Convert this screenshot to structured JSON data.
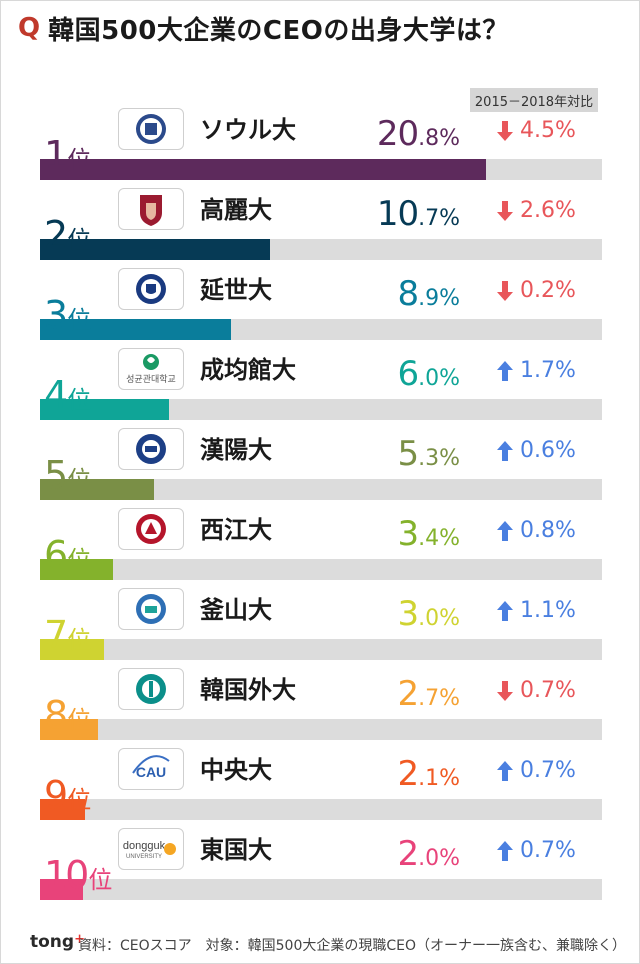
{
  "header": {
    "q_mark": "Q",
    "title": "韓国500大企業のCEOの出身大学は？",
    "comparison_label": "2015－2018年対比"
  },
  "chart_data": {
    "type": "bar",
    "title": "韓国500大企業のCEOの出身大学は？",
    "unit": "%",
    "xlim": [
      0,
      26.2
    ],
    "rank_suffix": "位",
    "items": [
      {
        "rank": "1",
        "name": "ソウル大",
        "value": 20.8,
        "int": "20",
        "dec": ".8%",
        "change_dir": "down",
        "change": "4.5%",
        "color": "#5d2a5c",
        "logo": "seoul-national-university-logo"
      },
      {
        "rank": "2",
        "name": "高麗大",
        "value": 10.7,
        "int": "10",
        "dec": ".7%",
        "change_dir": "down",
        "change": "2.6%",
        "color": "#063a55",
        "logo": "korea-university-logo"
      },
      {
        "rank": "3",
        "name": "延世大",
        "value": 8.9,
        "int": "8",
        "dec": ".9%",
        "change_dir": "down",
        "change": "0.2%",
        "color": "#0a7d9b",
        "logo": "yonsei-university-logo"
      },
      {
        "rank": "4",
        "name": "成均館大",
        "value": 6.0,
        "int": "6",
        "dec": ".0%",
        "change_dir": "up",
        "change": "1.7%",
        "color": "#0fa597",
        "logo": "sungkyunkwan-university-logo",
        "logo_text": "성균관대학교"
      },
      {
        "rank": "5",
        "name": "漢陽大",
        "value": 5.3,
        "int": "5",
        "dec": ".3%",
        "change_dir": "up",
        "change": "0.6%",
        "color": "#7a8f46",
        "logo": "hanyang-university-logo"
      },
      {
        "rank": "6",
        "name": "西江大",
        "value": 3.4,
        "int": "3",
        "dec": ".4%",
        "change_dir": "up",
        "change": "0.8%",
        "color": "#84b22c",
        "logo": "sogang-university-logo"
      },
      {
        "rank": "7",
        "name": "釜山大",
        "value": 3.0,
        "int": "3",
        "dec": ".0%",
        "change_dir": "up",
        "change": "1.1%",
        "color": "#cfd331",
        "logo": "pusan-national-university-logo"
      },
      {
        "rank": "8",
        "name": "韓国外大",
        "value": 2.7,
        "int": "2",
        "dec": ".7%",
        "change_dir": "down",
        "change": "0.7%",
        "color": "#f5a233",
        "logo": "hufs-logo"
      },
      {
        "rank": "9",
        "name": "中央大",
        "value": 2.1,
        "int": "2",
        "dec": ".1%",
        "change_dir": "up",
        "change": "0.7%",
        "color": "#f05a23",
        "logo": "chung-ang-university-logo",
        "logo_text": "CAU"
      },
      {
        "rank": "10",
        "name": "東国大",
        "value": 2.0,
        "int": "2",
        "dec": ".0%",
        "change_dir": "up",
        "change": "0.7%",
        "color": "#e8437a",
        "logo": "dongguk-university-logo",
        "logo_text": "dongguk",
        "logo_text2": "UNIVERSITY"
      }
    ]
  },
  "colors": {
    "down": "#e8565a",
    "up": "#4a7fe0",
    "track": "#dcdcdc"
  },
  "footer": {
    "brand": "tong",
    "brand_mark": "+",
    "source": "資料：CEOスコア　対象：韓国500大企業の現職CEO（オーナー一族含む、兼職除く）"
  }
}
